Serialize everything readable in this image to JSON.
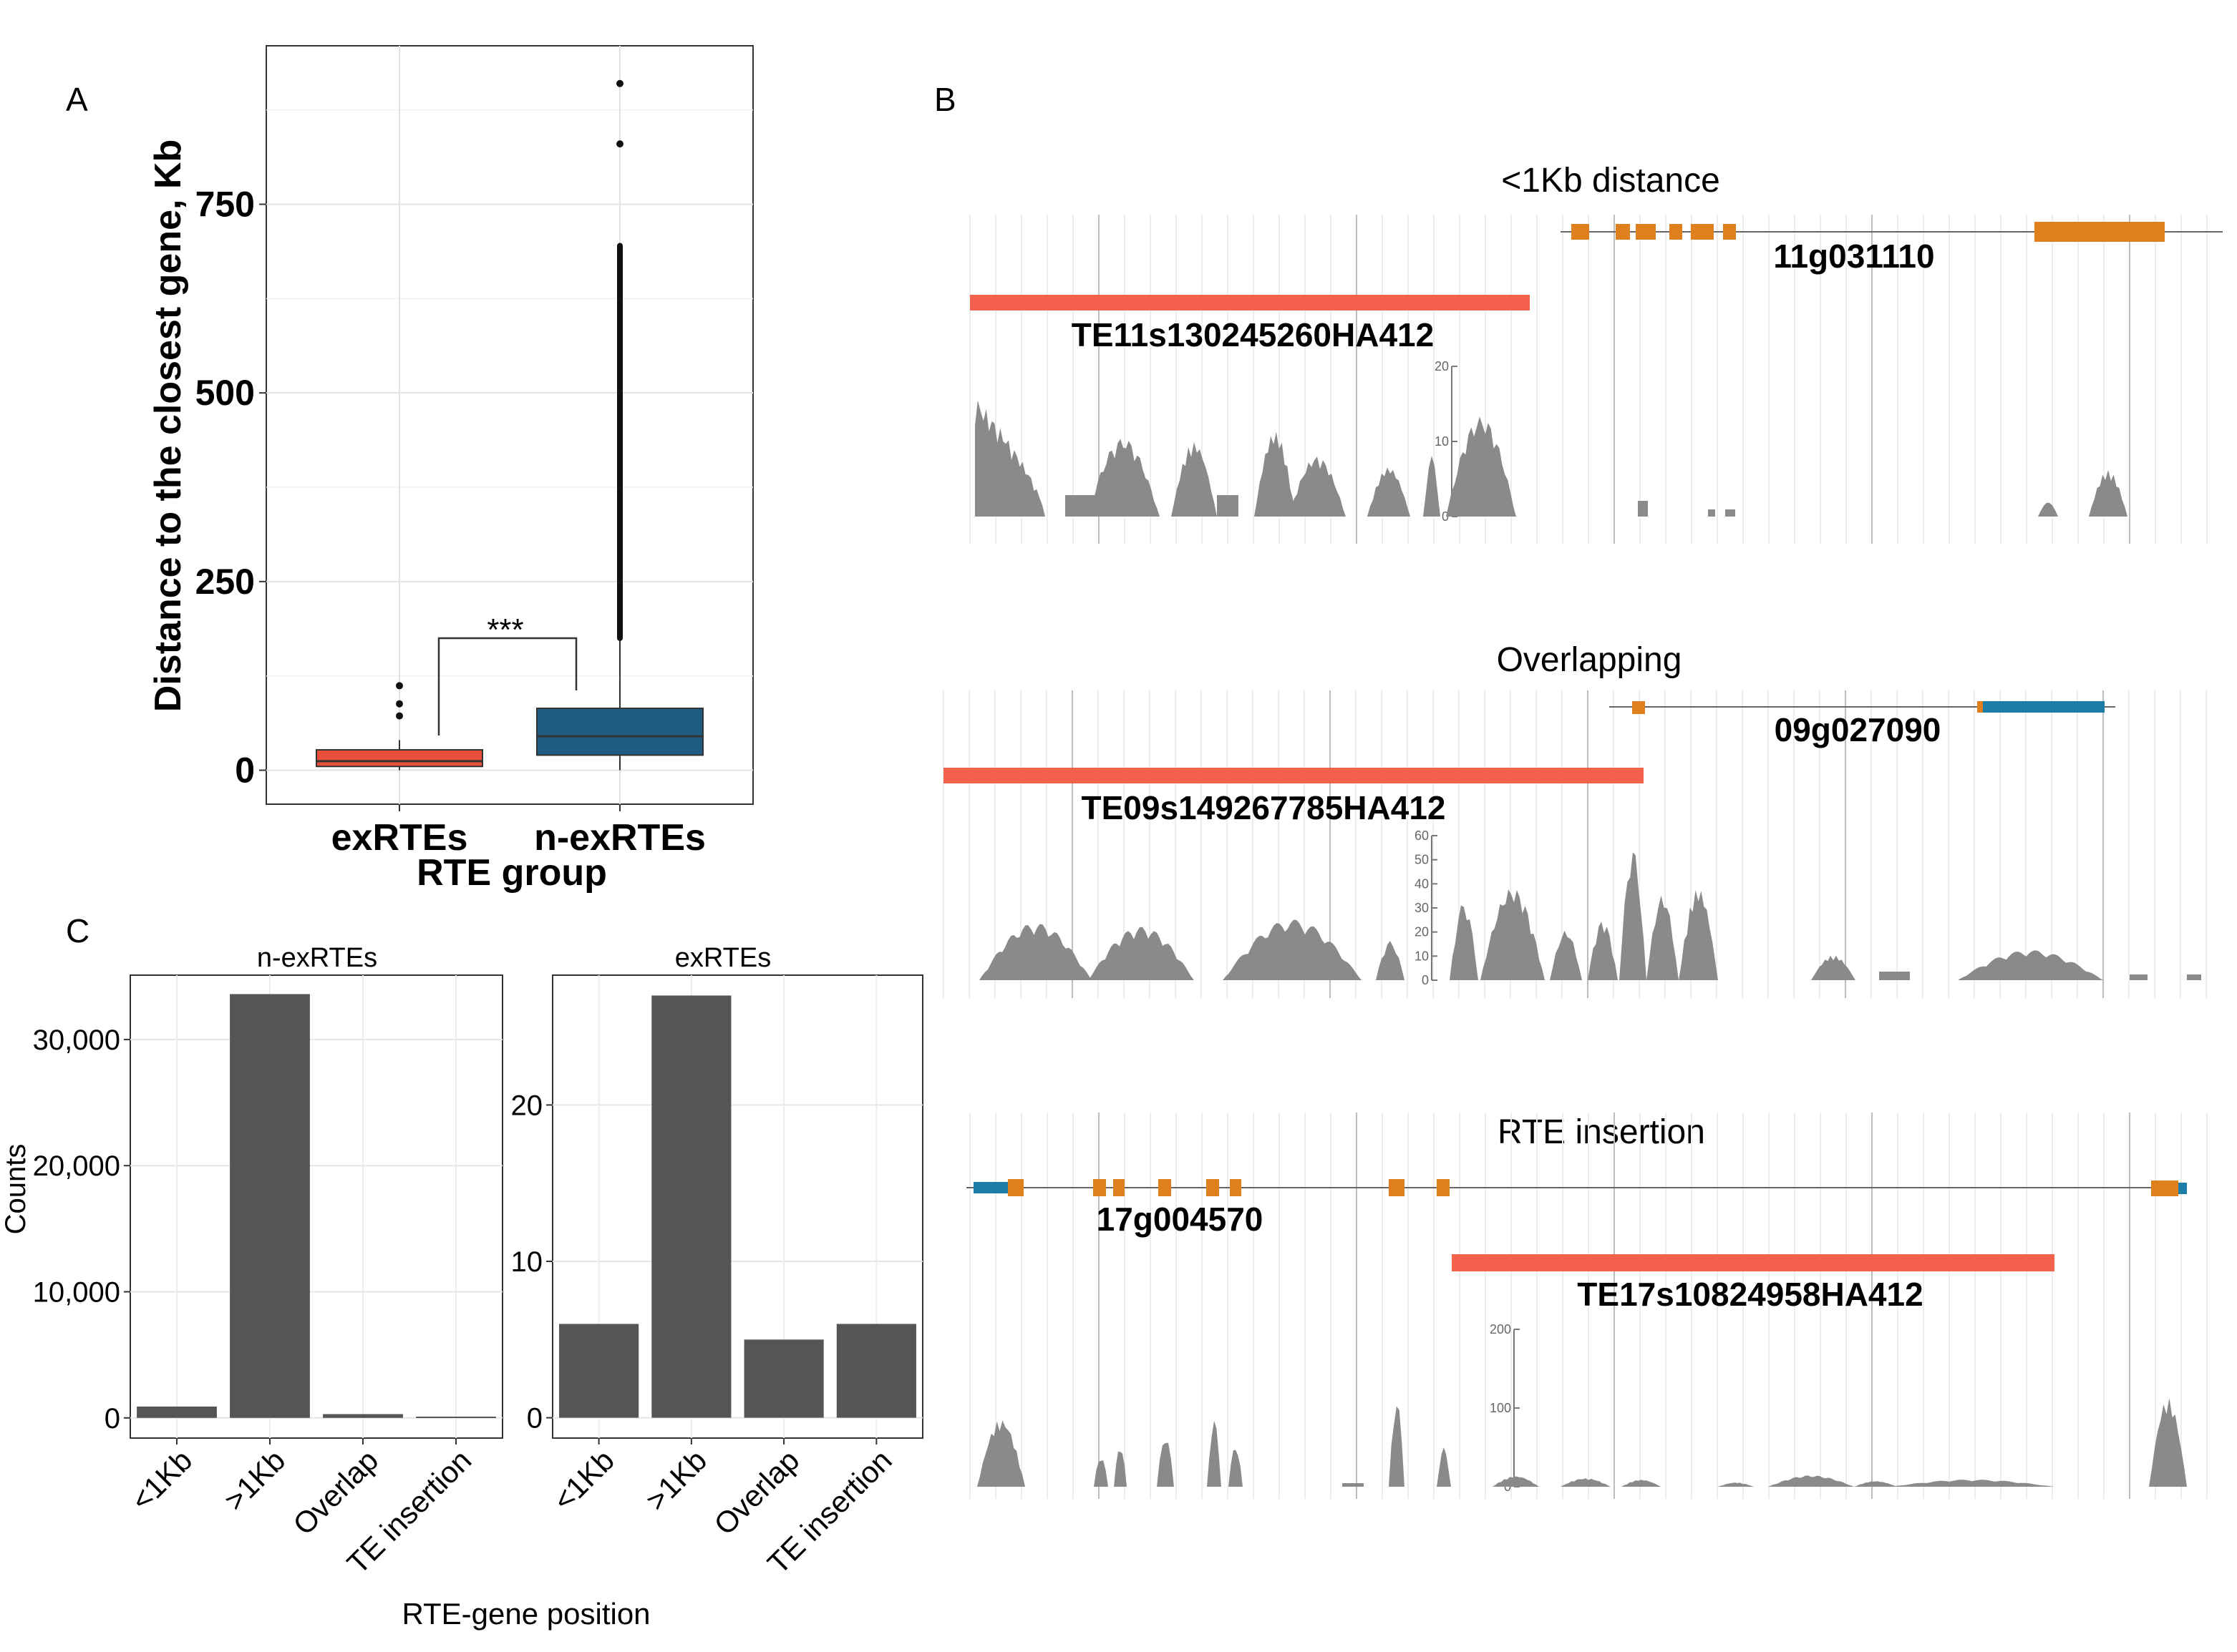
{
  "panel_letters": {
    "a": "A",
    "b": "B",
    "c": "C"
  },
  "colors": {
    "exrte_fill": "#E8503A",
    "nexrte_fill": "#1F5C82",
    "bar_fill": "#555555",
    "te_bar": "#F4614D",
    "exon_orange": "#E07F1E",
    "exon_blue": "#1B7DA8",
    "coverage": "#8A8A8A"
  },
  "chart_data": [
    {
      "type": "box",
      "panel": "A",
      "title": "",
      "xlabel": "RTE group",
      "ylabel": "Distance to the closest gene, Kb",
      "categories": [
        "exRTEs",
        "n-exRTEs"
      ],
      "yticks": [
        "0",
        "250",
        "500",
        "750"
      ],
      "ylim": [
        -45,
        960
      ],
      "boxes": [
        {
          "name": "exRTEs",
          "q1": 5,
          "median": 12,
          "q3": 27,
          "whisker_low": 0,
          "whisker_high": 40,
          "outliers": [
            72,
            88,
            112
          ]
        },
        {
          "name": "n-exRTEs",
          "q1": 20,
          "median": 45,
          "q3": 82,
          "whisker_low": 0,
          "whisker_high": 175,
          "outlier_range": [
            175,
            695
          ],
          "outliers": [
            830,
            910
          ]
        }
      ],
      "significance": "***",
      "grid": true
    },
    {
      "type": "bar",
      "panel": "C",
      "facet": "n-exRTEs",
      "xlabel": "RTE-gene position",
      "ylabel": "Counts",
      "categories": [
        "<1Kb",
        ">1Kb",
        "Overlap",
        "TE insertion"
      ],
      "values": [
        900,
        33600,
        300,
        100
      ],
      "yticks": [
        "0",
        "10,000",
        "20,000",
        "30,000"
      ],
      "ylim": [
        -1600,
        35100
      ]
    },
    {
      "type": "bar",
      "panel": "C",
      "facet": "exRTEs",
      "xlabel": "RTE-gene position",
      "ylabel": "Counts",
      "categories": [
        "<1Kb",
        ">1Kb",
        "Overlap",
        "TE insertion"
      ],
      "values": [
        6,
        27,
        5,
        6
      ],
      "yticks": [
        "0",
        "10",
        "20"
      ],
      "ylim": [
        -1.3,
        28.3
      ]
    }
  ],
  "tracks": [
    {
      "title": "<1Kb distance",
      "gene": "11g031110",
      "te": "TE11s130245260HA412",
      "scale_ticks": [
        "20",
        "10",
        "0"
      ]
    },
    {
      "title": "Overlapping",
      "gene": "09g027090",
      "te": "TE09s149267785HA412",
      "scale_ticks": [
        "60",
        "50",
        "40",
        "30",
        "20",
        "10",
        "0"
      ]
    },
    {
      "title": "RTE insertion",
      "gene": "17g004570",
      "te": "TE17s10824958HA412",
      "scale_ticks": [
        "200",
        "100",
        "0"
      ]
    }
  ]
}
